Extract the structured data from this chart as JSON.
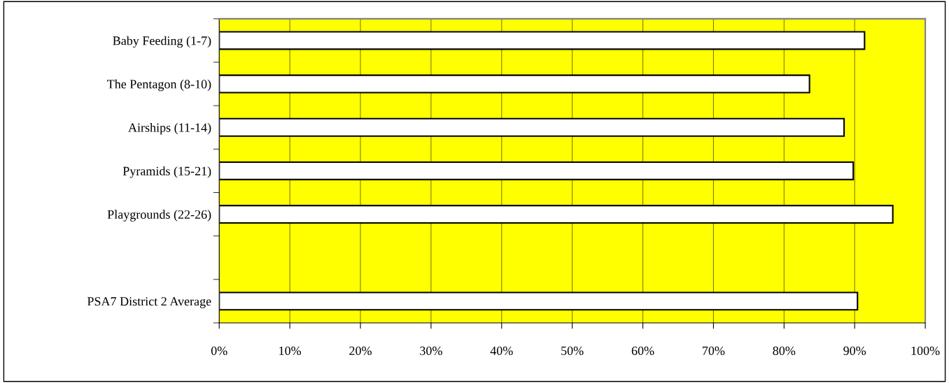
{
  "chart_data": {
    "type": "bar",
    "orientation": "horizontal",
    "categories": [
      "Baby Feeding (1-7)",
      "The Pentagon (8-10)",
      "Airships (11-14)",
      "Pyramids (15-21)",
      "Playgrounds (22-26)",
      null,
      "PSA7 District 2 Average"
    ],
    "values": [
      91.4,
      83.6,
      88.5,
      89.8,
      95.4,
      null,
      90.4
    ],
    "color": "#ffffff",
    "xlim": [
      0,
      100
    ],
    "xticks": [
      {
        "value": 0,
        "label": "0%"
      },
      {
        "value": 10,
        "label": "10%"
      },
      {
        "value": 20,
        "label": "20%"
      },
      {
        "value": 30,
        "label": "30%"
      },
      {
        "value": 40,
        "label": "40%"
      },
      {
        "value": 50,
        "label": "50%"
      },
      {
        "value": 60,
        "label": "60%"
      },
      {
        "value": 70,
        "label": "70%"
      },
      {
        "value": 80,
        "label": "80%"
      },
      {
        "value": 90,
        "label": "90%"
      },
      {
        "value": 100,
        "label": "100%"
      }
    ],
    "grid": "x",
    "legend": false
  }
}
